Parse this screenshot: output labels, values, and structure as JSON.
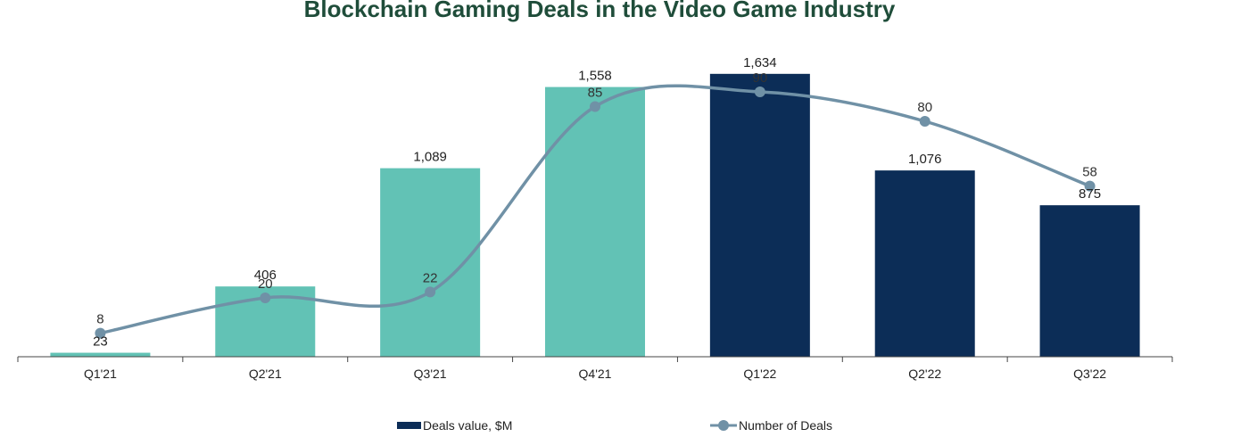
{
  "chart_data": {
    "type": "bar",
    "title": "Blockchain Gaming Deals in the Video Game Industry",
    "categories": [
      "Q1'21",
      "Q2'21",
      "Q3'21",
      "Q4'21",
      "Q1'22",
      "Q2'22",
      "Q3'22"
    ],
    "series": [
      {
        "name": "Deals value, $M",
        "kind": "bar",
        "values": [
          23,
          406,
          1089,
          1558,
          1634,
          1076,
          875
        ],
        "labels": [
          "23",
          "406",
          "1,089",
          "1,558",
          "1,634",
          "1,076",
          "875"
        ]
      },
      {
        "name": "Number of Deals",
        "kind": "line",
        "values": [
          8,
          20,
          22,
          85,
          90,
          80,
          58
        ],
        "labels": [
          "8",
          "20",
          "22",
          "85",
          "90",
          "80",
          "58"
        ]
      }
    ],
    "bar_colors": [
      "#62c2b5",
      "#62c2b5",
      "#62c2b5",
      "#62c2b5",
      "#0c2d57",
      "#0c2d57",
      "#0c2d57"
    ],
    "line_color": "#7091a6",
    "legend_swatch_color": "#0c2d57",
    "ylim": [
      0,
      1700
    ],
    "y2lim": [
      0,
      100
    ],
    "xlabel": "",
    "ylabel": "",
    "grid": false,
    "legend_position": "bottom"
  }
}
